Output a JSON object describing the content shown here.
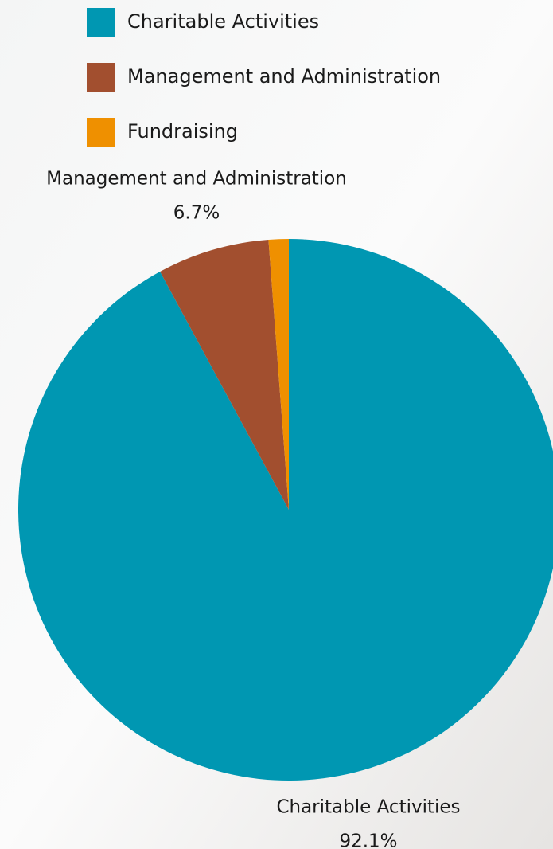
{
  "chart_data": {
    "type": "pie",
    "categories": [
      "Charitable Activities",
      "Management and Administration",
      "Fundraising"
    ],
    "values": [
      92.1,
      6.7,
      1.2
    ],
    "value_labels": [
      "92.1%",
      "6.7%",
      null
    ],
    "colors": [
      "#0097b2",
      "#a24f2f",
      "#ef9000"
    ],
    "legend": "top"
  }
}
